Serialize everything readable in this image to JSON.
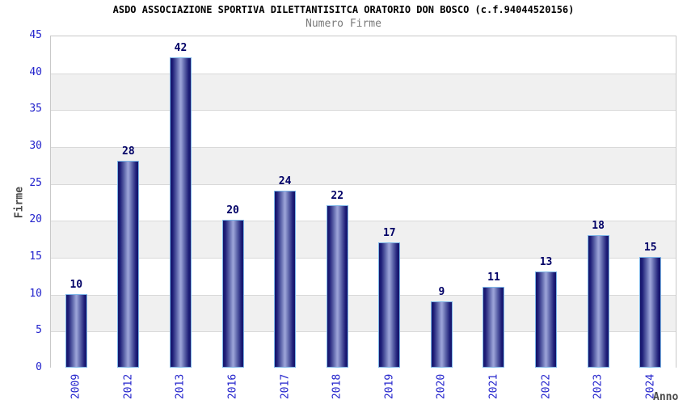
{
  "chart_data": {
    "type": "bar",
    "title": "ASDO ASSOCIAZIONE SPORTIVA DILETTANTISITCA ORATORIO DON BOSCO (c.f.94044520156)",
    "subtitle": "Numero Firme",
    "xlabel": "Anno",
    "ylabel": "Firme",
    "categories": [
      "2009",
      "2012",
      "2013",
      "2016",
      "2017",
      "2018",
      "2019",
      "2020",
      "2021",
      "2022",
      "2023",
      "2024"
    ],
    "values": [
      10,
      28,
      42,
      20,
      24,
      22,
      17,
      9,
      11,
      13,
      18,
      15
    ],
    "ylim": [
      0,
      45
    ],
    "ytick_interval": 5,
    "grid": true,
    "legend_position": "none",
    "bands_alternating": true,
    "colors": {
      "bar_edge": "#15156a",
      "bar_center": "#99a1d6",
      "bar_border": "#7db6e8",
      "value_label": "#000066",
      "tick_label": "#2323cc",
      "axis_title": "#4a4a4a",
      "title": "#000000",
      "subtitle": "#7a7a7a",
      "band_alt": "#f0f0f0",
      "band_main": "#ffffff",
      "gridline": "#d9d9d9",
      "plot_border": "#c9c9c9"
    }
  }
}
